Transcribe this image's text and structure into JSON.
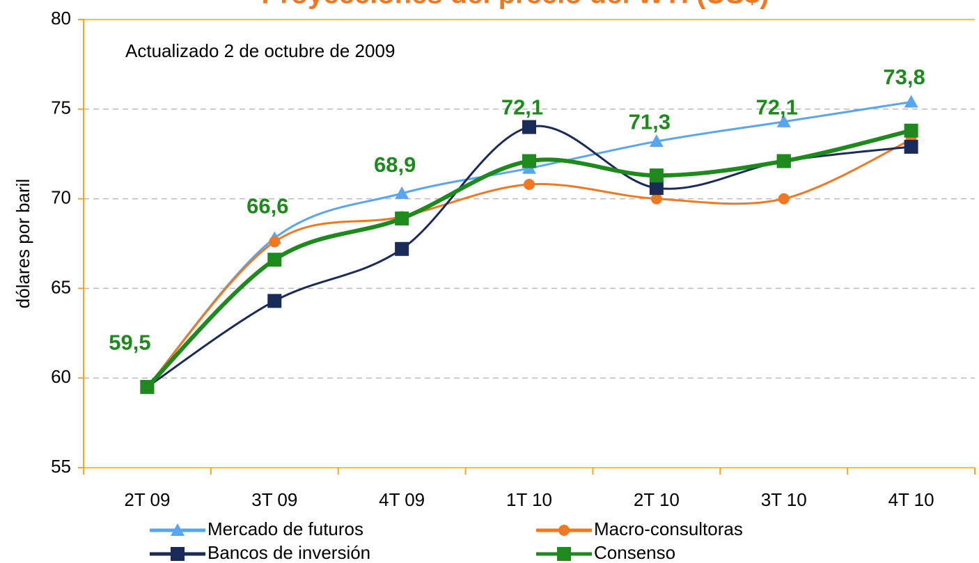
{
  "chart_data": {
    "type": "line",
    "title": "Proyecciones del precio del WTI (US$)",
    "annotation": "Actualizado 2 de octubre de 2009",
    "y_label": "dólares por baril",
    "categories": [
      "2T 09",
      "3T 09",
      "4T 09",
      "1T 10",
      "2T 10",
      "3T 10",
      "4T 10"
    ],
    "series": [
      {
        "name": "Mercado de futuros",
        "color": "#5aa5f0",
        "marker": "triangle",
        "values": [
          59.5,
          67.8,
          70.3,
          71.7,
          73.2,
          74.3,
          75.4
        ]
      },
      {
        "name": "Macro-consultoras",
        "color": "#f07820",
        "marker": "circle",
        "values": [
          59.5,
          67.6,
          69.0,
          70.8,
          70.0,
          70.0,
          73.3
        ]
      },
      {
        "name": "Bancos de inversión",
        "color": "#1a2b5a",
        "marker": "square",
        "values": [
          59.5,
          64.3,
          67.2,
          74.0,
          70.6,
          72.1,
          72.9
        ]
      },
      {
        "name": "Consenso",
        "color": "#1e8a1e",
        "marker": "square",
        "values": [
          59.5,
          66.6,
          68.9,
          72.1,
          71.3,
          72.1,
          73.8
        ],
        "value_labels": [
          "59,5",
          "66,6",
          "68,9",
          "72,1",
          "71,3",
          "72,1",
          "73,8"
        ]
      }
    ],
    "ylim": [
      55,
      80
    ],
    "yticks": [
      55,
      60,
      65,
      70,
      75,
      80
    ],
    "grid": true,
    "legend": "bottom"
  }
}
